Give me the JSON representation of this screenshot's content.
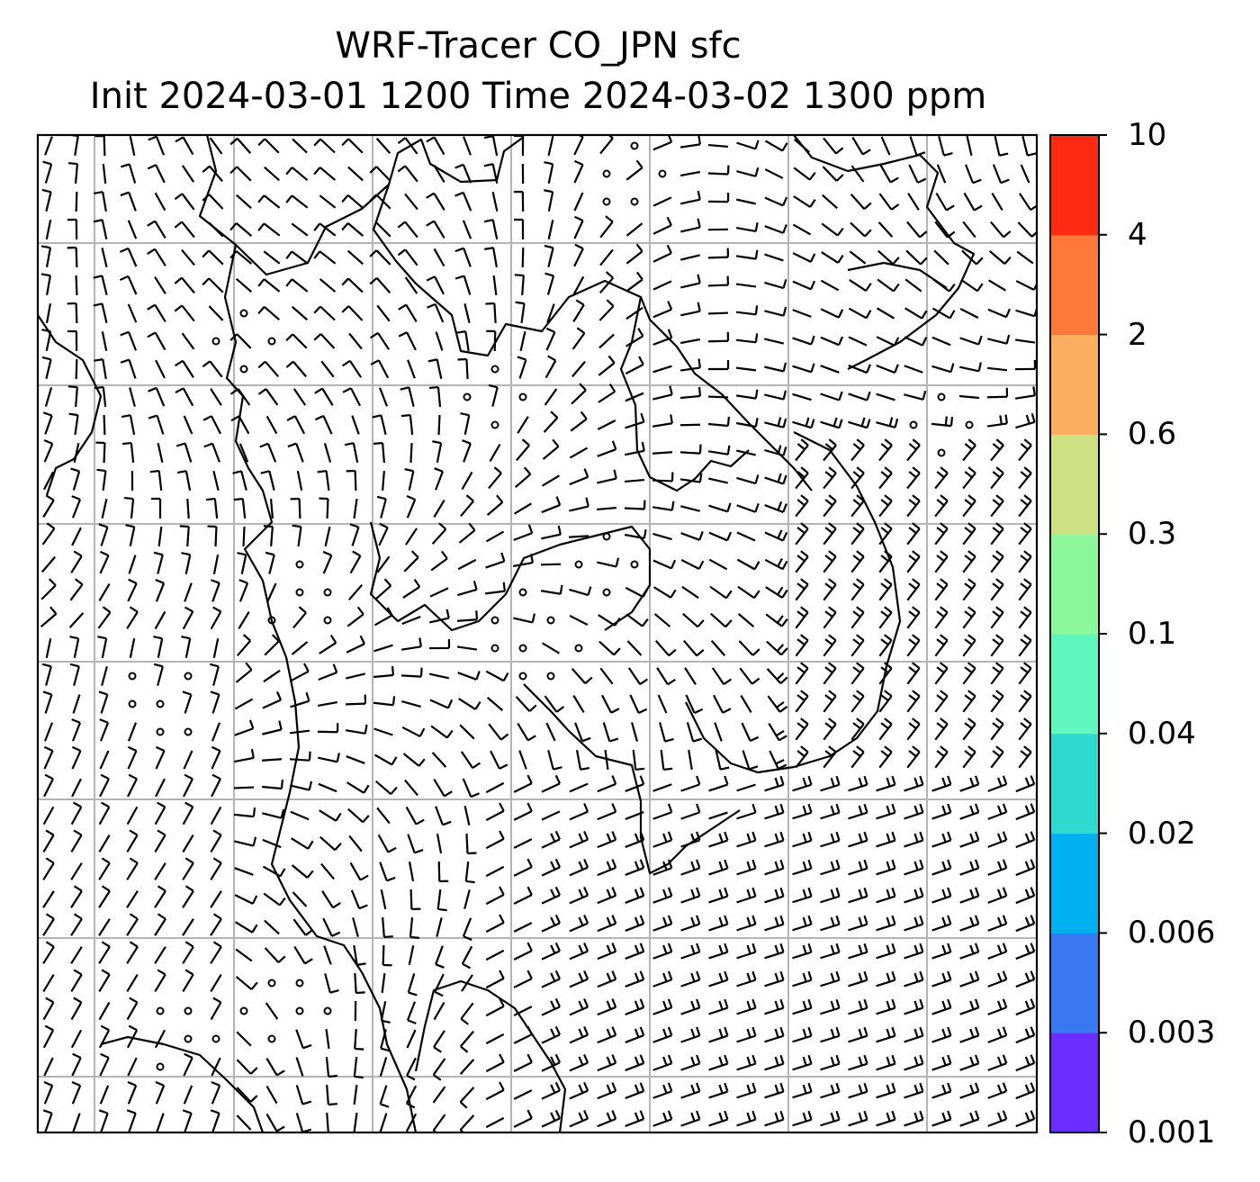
{
  "title_line1": "WRF-Tracer CO_JPN sfc",
  "title_line2": "Init 2024-03-01 1200 Time 2024-03-02 1300 ppm",
  "colorbar": {
    "ticks": [
      "0.001",
      "0.003",
      "0.006",
      "0.02",
      "0.04",
      "0.1",
      "0.3",
      "0.6",
      "2",
      "4",
      "10"
    ],
    "colors": [
      "#6a2cff",
      "#3a78f2",
      "#00b0ee",
      "#2fd9d0",
      "#5ff7bf",
      "#8cf89a",
      "#cde183",
      "#fbae5f",
      "#ff7a3a",
      "#ff2a12"
    ]
  },
  "map": {
    "gridlines": true,
    "grid_color": "#b4b4b4",
    "coastline_color": "#000000",
    "barb_color": "#000000"
  }
}
